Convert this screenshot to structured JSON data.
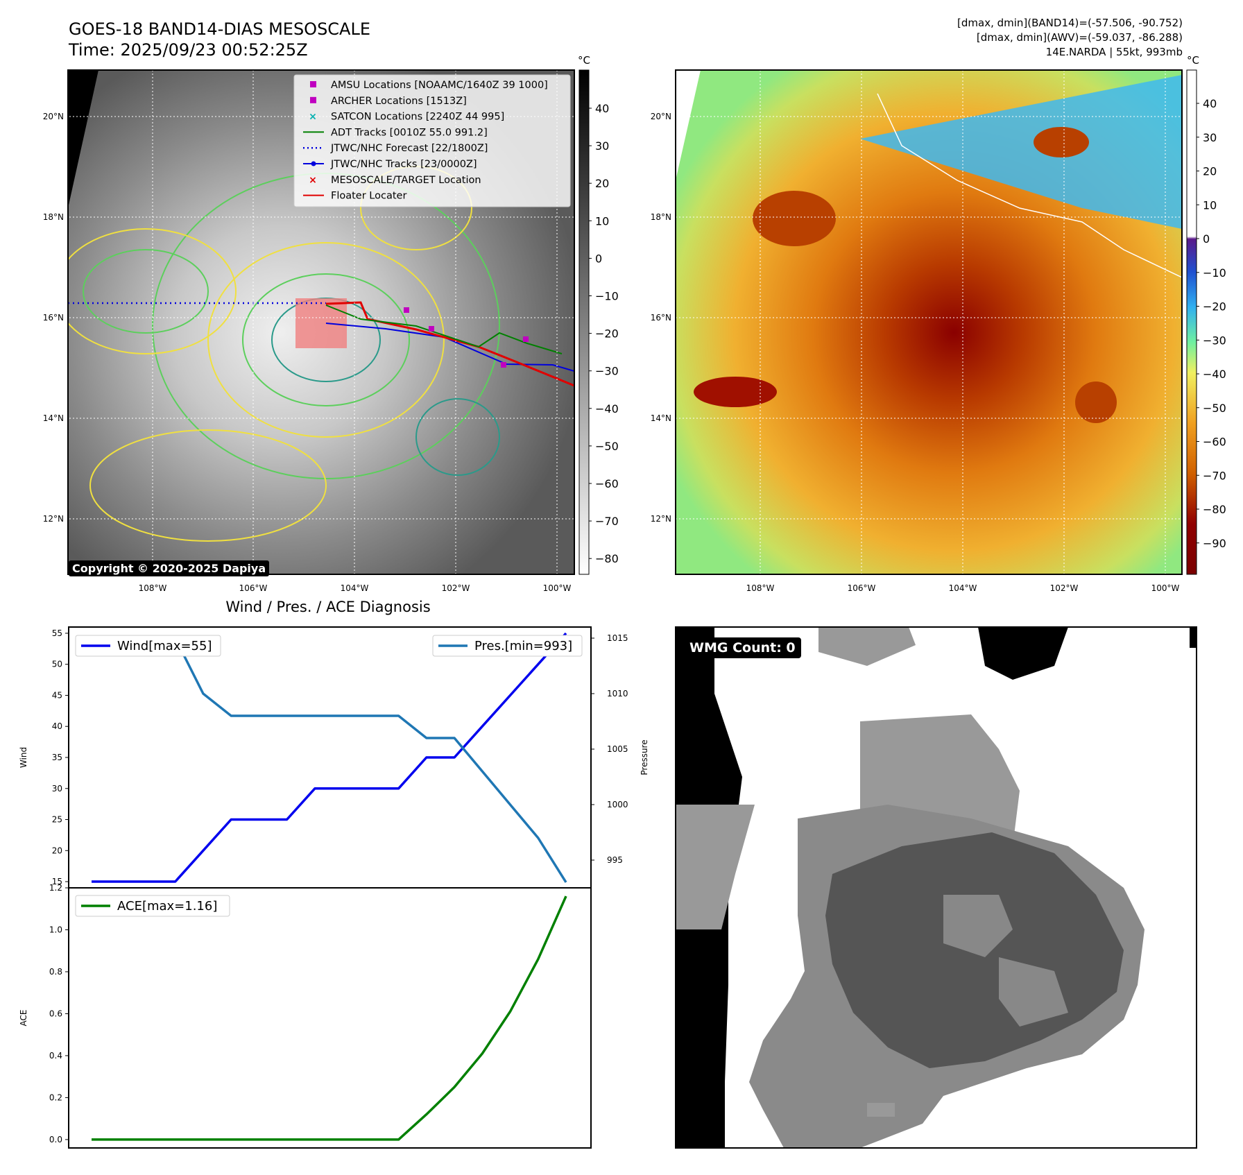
{
  "header": {
    "title": "GOES-18 BAND14-DIAS MESOSCALE",
    "time": "Time: 2025/09/23 00:52:25Z",
    "dmax_band14": "[dmax, dmin](BAND14)=(-57.506, -90.752)",
    "dmax_awv": "[dmax, dmin](AWV)=(-59.037, -86.288)",
    "storm_info": "14E.NARDA | 55kt, 993mb",
    "copyright": "Copyright © 2020-2025 Dapiya",
    "wmg_count": "WMG Count: 0"
  },
  "maps": {
    "unit": "°C",
    "lat_labels": [
      "20°N",
      "18°N",
      "16°N",
      "14°N",
      "12°N"
    ],
    "lon_labels": [
      "108°W",
      "106°W",
      "104°W",
      "102°W",
      "100°W"
    ],
    "gray_colorbar_ticks": [
      "40",
      "30",
      "20",
      "10",
      "0",
      "−10",
      "−20",
      "−30",
      "−40",
      "−50",
      "−60",
      "−70",
      "−80"
    ],
    "color_colorbar_ticks": [
      "40",
      "30",
      "20",
      "10",
      "0",
      "−10",
      "−20",
      "−30",
      "−40",
      "−50",
      "−60",
      "−70",
      "−80",
      "−90"
    ],
    "legend": [
      {
        "label": "AMSU Locations [NOAAMC/1640Z 39 1000]",
        "marker": "square",
        "color": "#c000c0"
      },
      {
        "label": "ARCHER Locations [1513Z]",
        "marker": "square",
        "color": "#c000c0"
      },
      {
        "label": "SATCON Locations [2240Z 44 995]",
        "marker": "x",
        "color": "#00b0b0"
      },
      {
        "label": "ADT Tracks [0010Z 55.0 991.2]",
        "marker": "line",
        "color": "#008000"
      },
      {
        "label": "JTWC/NHC Forecast [22/1800Z]",
        "marker": "dotted",
        "color": "#0000dd"
      },
      {
        "label": "JTWC/NHC Tracks [23/0000Z]",
        "marker": "line-dot",
        "color": "#0000dd"
      },
      {
        "label": "MESOSCALE/TARGET Location",
        "marker": "x",
        "color": "#e00000"
      },
      {
        "label": "Floater Locater",
        "marker": "line",
        "color": "#e00000"
      }
    ]
  },
  "chart_data": [
    {
      "type": "line",
      "title": "Wind / Pres. / ACE Diagnosis",
      "ylabel": "Wind",
      "ylabel_right": "Pressure",
      "x": [
        0,
        1,
        2,
        3,
        4,
        5,
        6,
        7,
        8,
        9,
        10,
        11,
        12,
        13,
        14,
        15,
        16,
        17
      ],
      "ylim": [
        14,
        56
      ],
      "ylim_right": [
        992.5,
        1016
      ],
      "yticks": [
        15,
        20,
        25,
        30,
        35,
        40,
        45,
        50,
        55
      ],
      "yticks_right": [
        995,
        1000,
        1005,
        1010,
        1015
      ],
      "series": [
        {
          "name": "Wind[max=55]",
          "axis": "left",
          "color": "#0000ee",
          "values": [
            15,
            15,
            15,
            15,
            20,
            25,
            25,
            25,
            30,
            30,
            30,
            30,
            35,
            35,
            40,
            45,
            50,
            55
          ]
        },
        {
          "name": "Pres.[min=993]",
          "axis": "right",
          "color": "#1f77b4",
          "values": [
            1015,
            1015,
            1015,
            1015,
            1010,
            1008,
            1008,
            1008,
            1008,
            1008,
            1008,
            1008,
            1006,
            1006,
            1003,
            1000,
            997,
            993
          ]
        }
      ]
    },
    {
      "type": "line",
      "ylabel": "ACE",
      "x": [
        0,
        1,
        2,
        3,
        4,
        5,
        6,
        7,
        8,
        9,
        10,
        11,
        12,
        13,
        14,
        15,
        16,
        17
      ],
      "ylim": [
        -0.04,
        1.2
      ],
      "yticks": [
        0.0,
        0.2,
        0.4,
        0.6,
        0.8,
        1.0,
        1.2
      ],
      "series": [
        {
          "name": "ACE[max=1.16]",
          "color": "#008000",
          "values": [
            0,
            0,
            0,
            0,
            0,
            0,
            0,
            0,
            0,
            0,
            0,
            0,
            0.12,
            0.25,
            0.41,
            0.61,
            0.86,
            1.16
          ]
        }
      ]
    }
  ]
}
